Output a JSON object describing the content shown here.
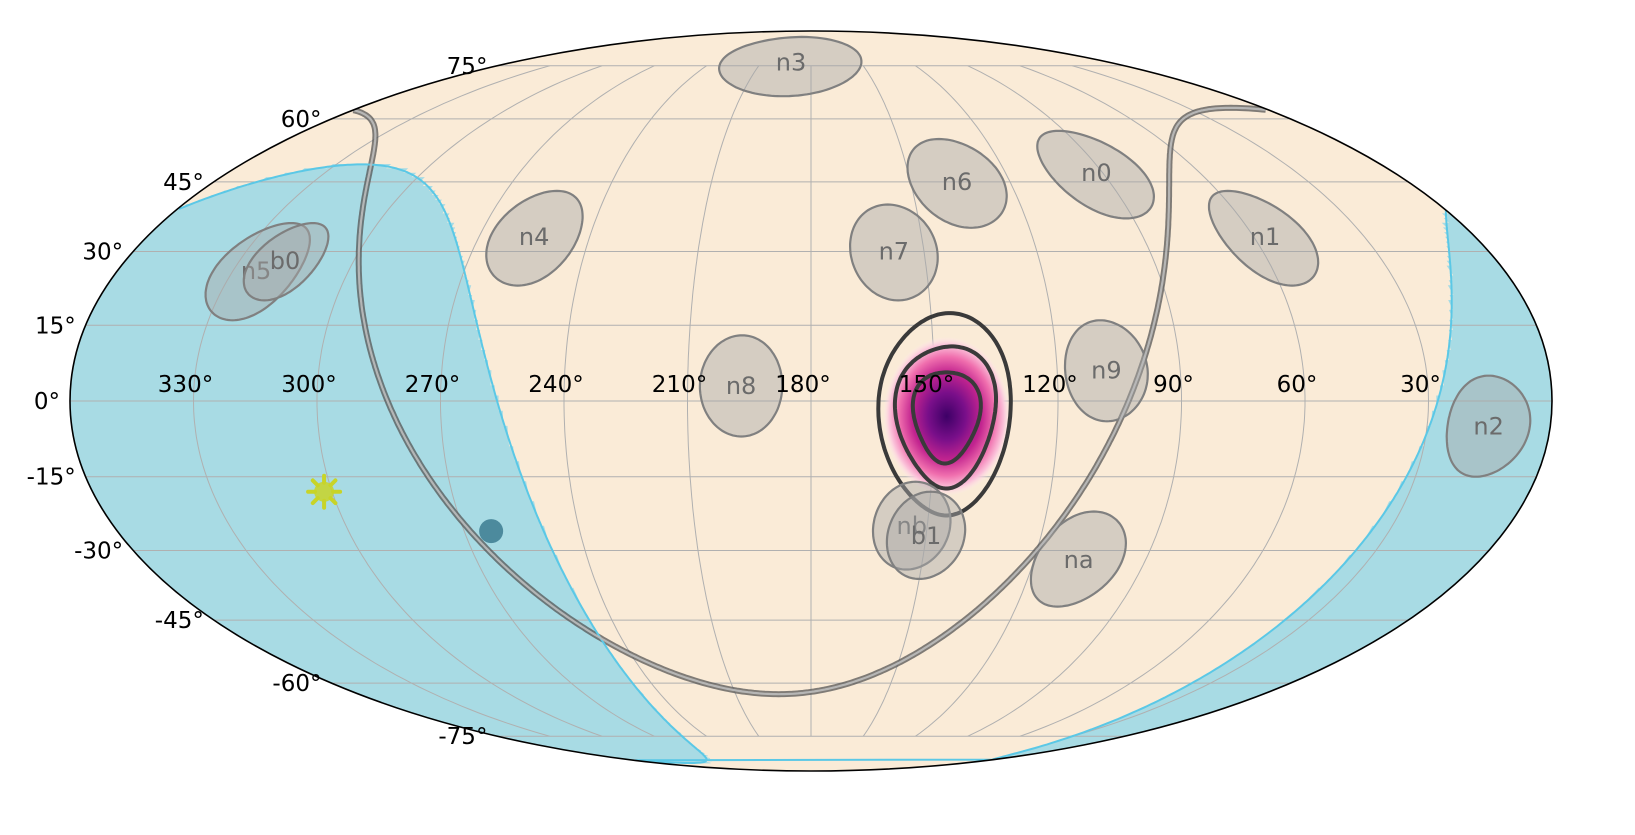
{
  "colors": {
    "sky_background": "#faebd7",
    "earth_occultation": "#a8dbe4",
    "earth_edge": "#5bc8e6",
    "grid": "#b0b0b0",
    "outline": "#000000",
    "detector_fill": "#a9a9a9",
    "detector_edge": "#808080",
    "detector_label": "#6b6b6b",
    "contour": "#3a3a3a",
    "galactic_plane": "#555555",
    "sun": "#c8d428",
    "heatmap_low": "#ffe4ef",
    "heatmap_high": "#4b006e"
  },
  "lon_labels": [
    {
      "text": "330°",
      "lon": 330
    },
    {
      "text": "300°",
      "lon": 300
    },
    {
      "text": "270°",
      "lon": 270
    },
    {
      "text": "240°",
      "lon": 240
    },
    {
      "text": "210°",
      "lon": 210
    },
    {
      "text": "180°",
      "lon": 180
    },
    {
      "text": "150°",
      "lon": 150
    },
    {
      "text": "120°",
      "lon": 120
    },
    {
      "text": "90°",
      "lon": 90
    },
    {
      "text": "60°",
      "lon": 60
    },
    {
      "text": "30°",
      "lon": 30
    }
  ],
  "lat_labels": [
    {
      "text": "75°",
      "lat": 75
    },
    {
      "text": "60°",
      "lat": 60
    },
    {
      "text": "45°",
      "lat": 45
    },
    {
      "text": "30°",
      "lat": 30
    },
    {
      "text": "15°",
      "lat": 15
    },
    {
      "text": "0°",
      "lat": 0
    },
    {
      "text": "-15°",
      "lat": -15
    },
    {
      "text": "-30°",
      "lat": -30
    },
    {
      "text": "-45°",
      "lat": -45
    },
    {
      "text": "-60°",
      "lat": -60
    },
    {
      "text": "-75°",
      "lat": -75
    }
  ],
  "detectors": [
    {
      "name": "n0",
      "lon": 92,
      "lat": 47,
      "r": 10
    },
    {
      "name": "n1",
      "lon": 57,
      "lat": 33,
      "r": 10
    },
    {
      "name": "n2",
      "lon": 15,
      "lat": -5,
      "r": 10
    },
    {
      "name": "n3",
      "lon": 192,
      "lat": 76,
      "r": 10
    },
    {
      "name": "n4",
      "lon": 255,
      "lat": 33,
      "r": 10
    },
    {
      "name": "n5",
      "lon": 324,
      "lat": 26,
      "r": 10
    },
    {
      "name": "n6",
      "lon": 136,
      "lat": 45,
      "r": 10
    },
    {
      "name": "n7",
      "lon": 158,
      "lat": 30,
      "r": 10
    },
    {
      "name": "n8",
      "lon": 197,
      "lat": 3,
      "r": 10
    },
    {
      "name": "n9",
      "lon": 108,
      "lat": 6,
      "r": 10
    },
    {
      "name": "na",
      "lon": 108,
      "lat": -32,
      "r": 10
    },
    {
      "name": "nb",
      "lon": 154,
      "lat": -25,
      "r": 9
    },
    {
      "name": "b0",
      "lon": 318,
      "lat": 28,
      "r": 8
    },
    {
      "name": "b1",
      "lon": 150,
      "lat": -27,
      "r": 9
    }
  ],
  "localization": {
    "center_lon": 147,
    "center_lat": -3,
    "contours": [
      {
        "level": "1 sigma",
        "a": 8,
        "b": 9
      },
      {
        "level": "2 sigma",
        "a": 12,
        "b": 14
      },
      {
        "level": "3 sigma",
        "a": 16,
        "b": 20
      }
    ]
  },
  "sun": {
    "lon": 302,
    "lat": -18
  },
  "earth_center": {
    "lon": 322,
    "lat": -18
  }
}
